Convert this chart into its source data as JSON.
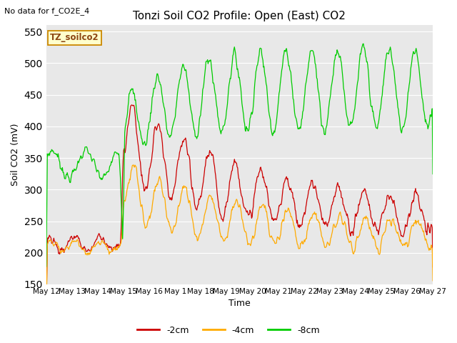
{
  "title": "Tonzi Soil CO2 Profile: Open (East) CO2",
  "subtitle": "No data for f_CO2E_4",
  "ylabel": "Soil CO2 (mV)",
  "xlabel": "Time",
  "legend_label": "TZ_soilco2",
  "ylim": [
    150,
    560
  ],
  "yticks": [
    150,
    200,
    250,
    300,
    350,
    400,
    450,
    500,
    550
  ],
  "series_labels": [
    "-2cm",
    "-4cm",
    "-8cm"
  ],
  "series_colors": [
    "#cc0000",
    "#ffaa00",
    "#00cc00"
  ],
  "bg_color": "#e8e8e8",
  "fig_bg": "#ffffff",
  "xtick_labels": [
    "May 12",
    "May 13",
    "May 14",
    "May 15",
    "May 16",
    "May 1",
    "May 18",
    "May 19",
    "May 20",
    "May 21",
    "May 22",
    "May 23",
    "May 24",
    "May 25",
    "May 26",
    "May 27"
  ]
}
